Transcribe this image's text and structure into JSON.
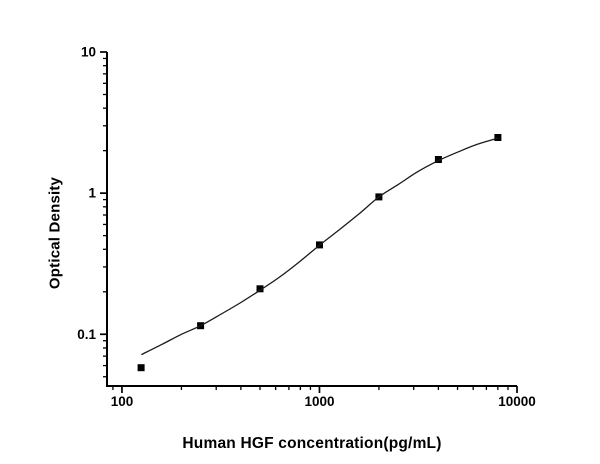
{
  "figure": {
    "background": "#ffffff",
    "axis_color": "#000000",
    "text_color": "#000000"
  },
  "chart_data": {
    "type": "scatter",
    "title": "",
    "xlabel": "Human HGF concentration(pg/mL)",
    "ylabel": "Optical Density",
    "x_scale": "log",
    "y_scale": "log",
    "xlim": [
      84,
      10000
    ],
    "ylim": [
      0.043,
      10
    ],
    "x_ticks": [
      {
        "value": 100,
        "label": "100"
      },
      {
        "value": 1000,
        "label": "1000"
      },
      {
        "value": 10000,
        "label": "10000"
      }
    ],
    "y_ticks": [
      {
        "value": 0.1,
        "label": "0.1"
      },
      {
        "value": 1,
        "label": "1"
      },
      {
        "value": 10,
        "label": "10"
      }
    ],
    "grid": false,
    "legend": null,
    "series": [
      {
        "name": "standards",
        "type": "scatter",
        "marker": "filled-square",
        "marker_size": 7,
        "color": "#000000",
        "x": [
          125,
          250,
          500,
          1000,
          2000,
          4000,
          8000
        ],
        "y": [
          0.058,
          0.115,
          0.21,
          0.43,
          0.94,
          1.73,
          2.48
        ]
      },
      {
        "name": "4pl-fit-curve",
        "type": "line",
        "color": "#1a1a1a",
        "line_width": 1.3,
        "x": [
          126,
          160,
          200,
          250,
          315,
          400,
          500,
          630,
          800,
          1000,
          1260,
          1600,
          2000,
          2500,
          3150,
          4000,
          5000,
          6300,
          8000
        ],
        "y": [
          0.072,
          0.085,
          0.1,
          0.115,
          0.138,
          0.168,
          0.205,
          0.255,
          0.33,
          0.428,
          0.55,
          0.72,
          0.94,
          1.15,
          1.42,
          1.7,
          1.95,
          2.22,
          2.45
        ]
      }
    ]
  }
}
